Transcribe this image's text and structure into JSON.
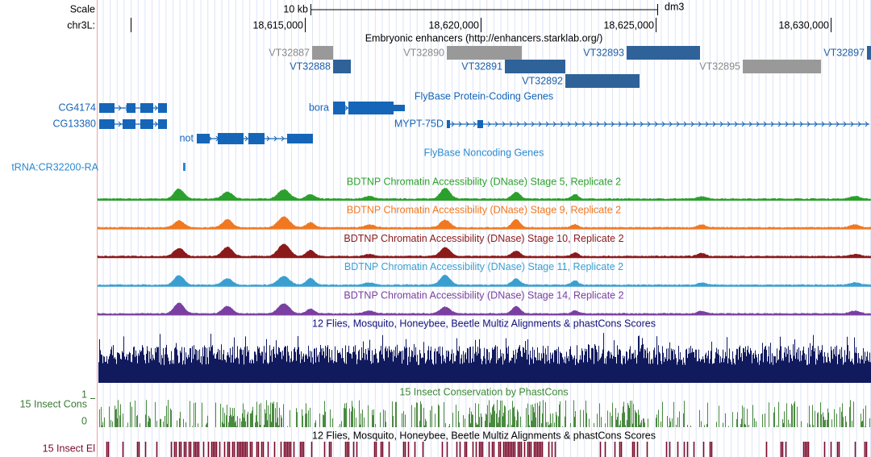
{
  "ruler": {
    "scale_label": "Scale",
    "kb_label": "10 kb",
    "assembly": "dm3",
    "chrom": "chr3L:",
    "positions": [
      "18,615,000",
      "18,620,000",
      "18,625,000",
      "18,630,000"
    ]
  },
  "enhancers": {
    "title": "Embryonic enhancers (http://enhancers.starklab.org/)",
    "items": [
      "VT32887",
      "VT32890",
      "VT32893",
      "VT32897",
      "VT32888",
      "VT32891",
      "VT32895",
      "VT32892"
    ]
  },
  "coding_genes": {
    "title": "FlyBase Protein-Coding Genes",
    "genes": [
      "CG4174",
      "CG13380",
      "bora",
      "MYPT-75D",
      "not"
    ]
  },
  "noncoding_genes": {
    "title": "FlyBase Noncoding Genes",
    "genes": [
      "tRNA:CR32200-RA"
    ]
  },
  "dnase_tracks": [
    "BDTNP Chromatin Accessibility (DNase) Stage 5, Replicate 2",
    "BDTNP Chromatin Accessibility (DNase) Stage 9, Replicate 2",
    "BDTNP Chromatin Accessibility (DNase) Stage 10, Replicate 2",
    "BDTNP Chromatin Accessibility (DNase) Stage 11, Replicate 2",
    "BDTNP Chromatin Accessibility (DNase) Stage 14, Replicate 2"
  ],
  "multiz": {
    "title": "12 Flies, Mosquito, Honeybee, Beetle Multiz Alignments & phastCons Scores"
  },
  "cons": {
    "title": "15 Insect Conservation by PhastCons",
    "side_label": "15 Insect Cons",
    "axis_top": "1",
    "axis_bottom": "0"
  },
  "elements": {
    "title": "12 Flies, Mosquito, Honeybee, Beetle Multiz Alignments & phastCons Scores",
    "side_label": "15 Insect El"
  }
}
